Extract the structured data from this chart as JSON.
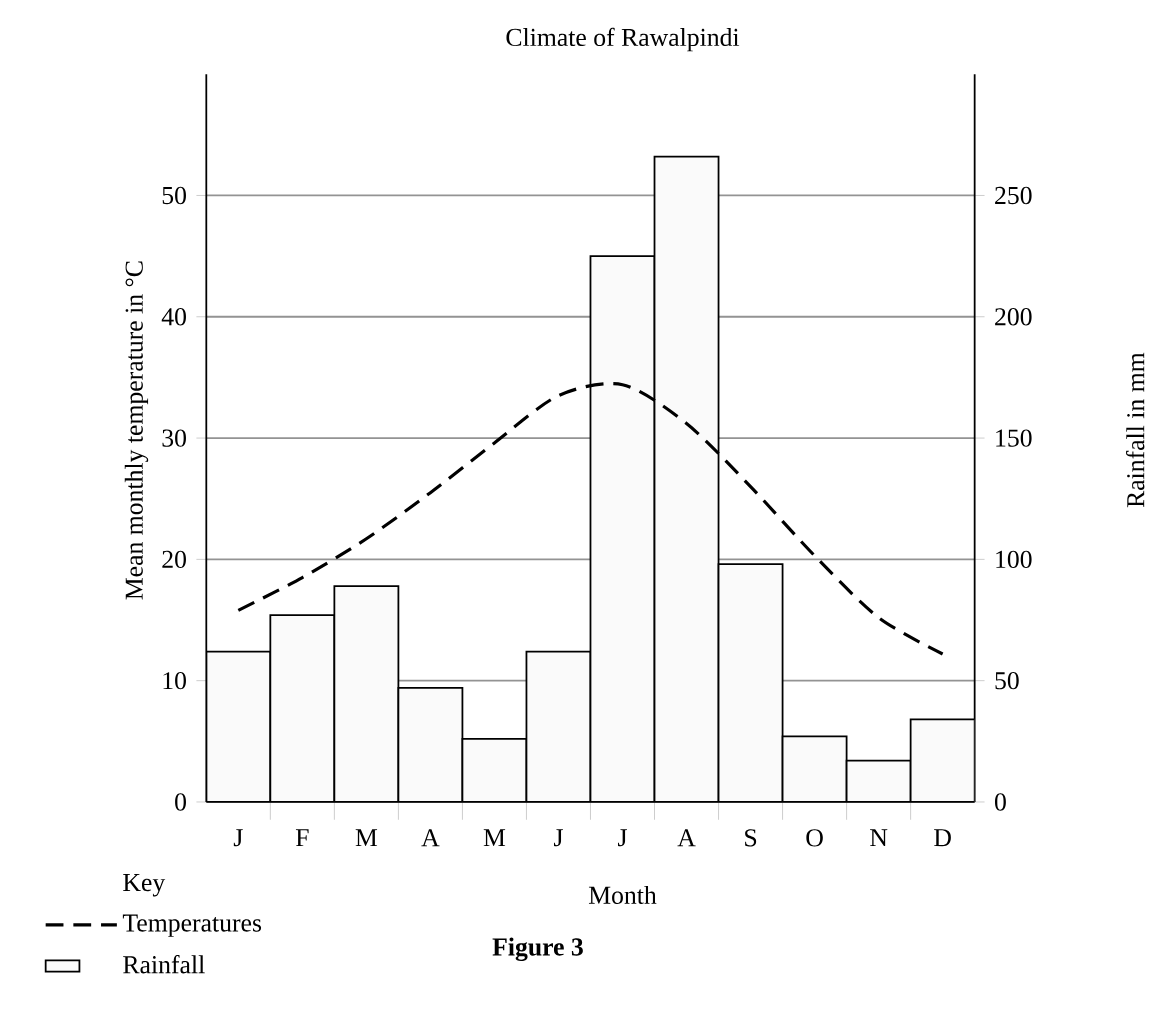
{
  "chart_data": {
    "type": "bar",
    "title": "Climate of Rawalpindi",
    "xlabel": "Month",
    "ylabel": "Mean monthly temperature in °C",
    "y2label": "Rainfall in mm",
    "legend_title": "Key",
    "annotations": [
      "Figure 3"
    ],
    "categories": [
      "J",
      "F",
      "M",
      "A",
      "M",
      "J",
      "J",
      "A",
      "S",
      "O",
      "N",
      "D"
    ],
    "series": [
      {
        "name": "Rainfall",
        "type": "bar",
        "axis": "y2",
        "color": "#fafafa",
        "values": [
          62,
          77,
          89,
          47,
          26,
          62,
          225,
          266,
          98,
          27,
          17,
          34
        ]
      },
      {
        "name": "Temperatures",
        "type": "line",
        "color": "#000000",
        "line_style": "dashed",
        "values": [
          15.8,
          18.5,
          21.7,
          25.5,
          29.6,
          33.5,
          34.4,
          31.2,
          26.0,
          20.3,
          15.2,
          12.2
        ]
      }
    ],
    "ylim": [
      0,
      60
    ],
    "yticks": [
      0,
      10,
      20,
      30,
      40,
      50
    ],
    "y2lim": [
      0,
      300
    ],
    "y2ticks": [
      0,
      50,
      100,
      150,
      200,
      250
    ],
    "grid": "y",
    "legend": "bottom left",
    "marker": "none"
  }
}
